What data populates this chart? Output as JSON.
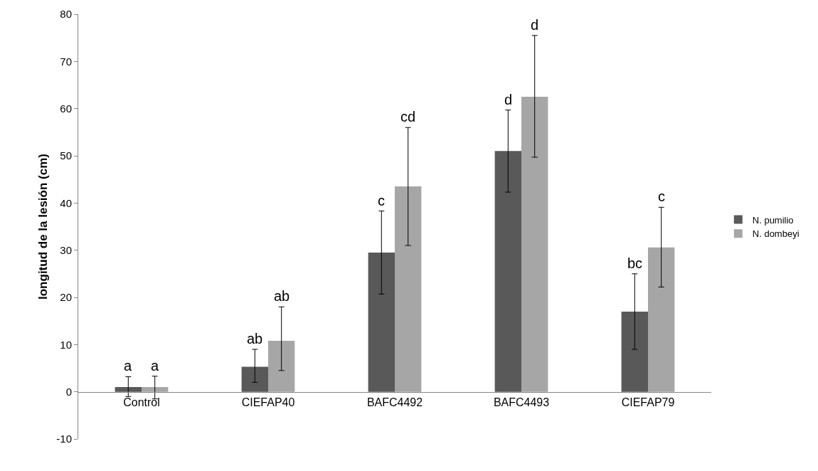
{
  "chart_data": {
    "type": "bar",
    "ylabel": "longitud de la lesión (cm)",
    "categories": [
      "Control",
      "CIEFAP40",
      "BAFC4492",
      "BAFC4493",
      "CIEFAP79"
    ],
    "series": [
      {
        "name": "N. pumilio",
        "color": "#595959",
        "values": [
          1,
          5.3,
          29.5,
          51,
          17
        ],
        "errors": [
          [
            -1,
            3.2
          ],
          [
            2,
            9
          ],
          [
            20.7,
            38.3
          ],
          [
            42.3,
            59.7
          ],
          [
            9,
            25
          ]
        ]
      },
      {
        "name": "N. dombeyi",
        "color": "#a6a6a6",
        "values": [
          1,
          10.8,
          43.5,
          62.5,
          30.6
        ],
        "errors": [
          [
            -1.5,
            3.3
          ],
          [
            4.5,
            18
          ],
          [
            31,
            56
          ],
          [
            49.7,
            75.5
          ],
          [
            22.2,
            39.1
          ]
        ]
      }
    ],
    "annotations": [
      "a",
      "a",
      "ab",
      "ab",
      "c",
      "cd",
      "d",
      "d",
      "bc",
      "c"
    ],
    "ylim": [
      -10,
      80
    ],
    "yticks": [
      -10,
      0,
      10,
      20,
      30,
      40,
      50,
      60,
      70,
      80
    ],
    "grid": false,
    "legend": "right"
  }
}
